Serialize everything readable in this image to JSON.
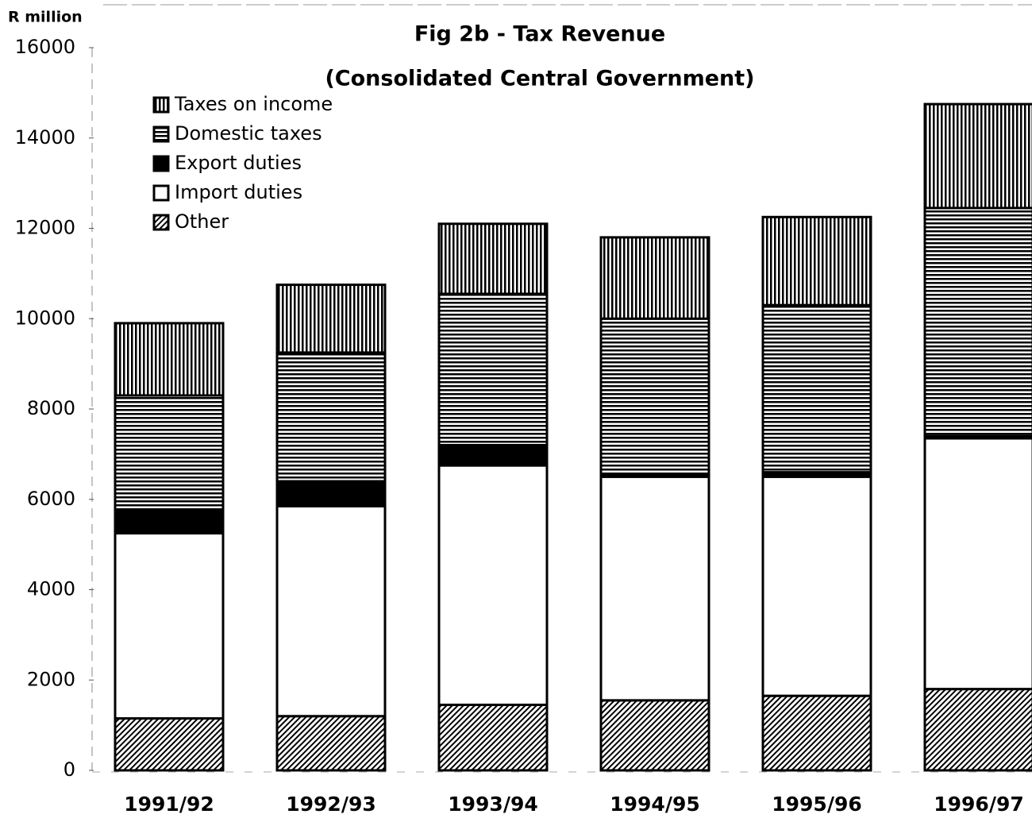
{
  "chart_data": {
    "type": "stacked-bar",
    "title": "Fig 2b - Tax Revenue",
    "subtitle": "(Consolidated Central Government)",
    "y_label": "R million",
    "categories": [
      "1991/92",
      "1992/93",
      "1993/94",
      "1994/95",
      "1995/96",
      "1996/97"
    ],
    "series": [
      {
        "name": "Taxes on income",
        "color": "#000000",
        "pattern": "vertical",
        "values": [
          1600,
          1500,
          1550,
          1800,
          1950,
          2300
        ]
      },
      {
        "name": "Domestic taxes",
        "color": "#000000",
        "pattern": "horizontal",
        "values": [
          2550,
          2850,
          3350,
          3450,
          3700,
          5050
        ]
      },
      {
        "name": "Export duties",
        "color": "#000000",
        "pattern": "solid",
        "values": [
          500,
          550,
          450,
          50,
          100,
          50
        ]
      },
      {
        "name": "Import duties",
        "color": "#ffffff",
        "pattern": "solid",
        "values": [
          4100,
          4650,
          5300,
          4950,
          4850,
          5550
        ]
      },
      {
        "name": "Other",
        "color": "#000000",
        "pattern": "diagonal",
        "values": [
          1150,
          1200,
          1450,
          1550,
          1650,
          1800
        ]
      }
    ],
    "stack_order": "bottom-up-reverse",
    "ylim": [
      0,
      16000
    ],
    "yticks": [
      0,
      2000,
      4000,
      6000,
      8000,
      10000,
      12000,
      14000,
      16000
    ],
    "legend": "top-left"
  }
}
